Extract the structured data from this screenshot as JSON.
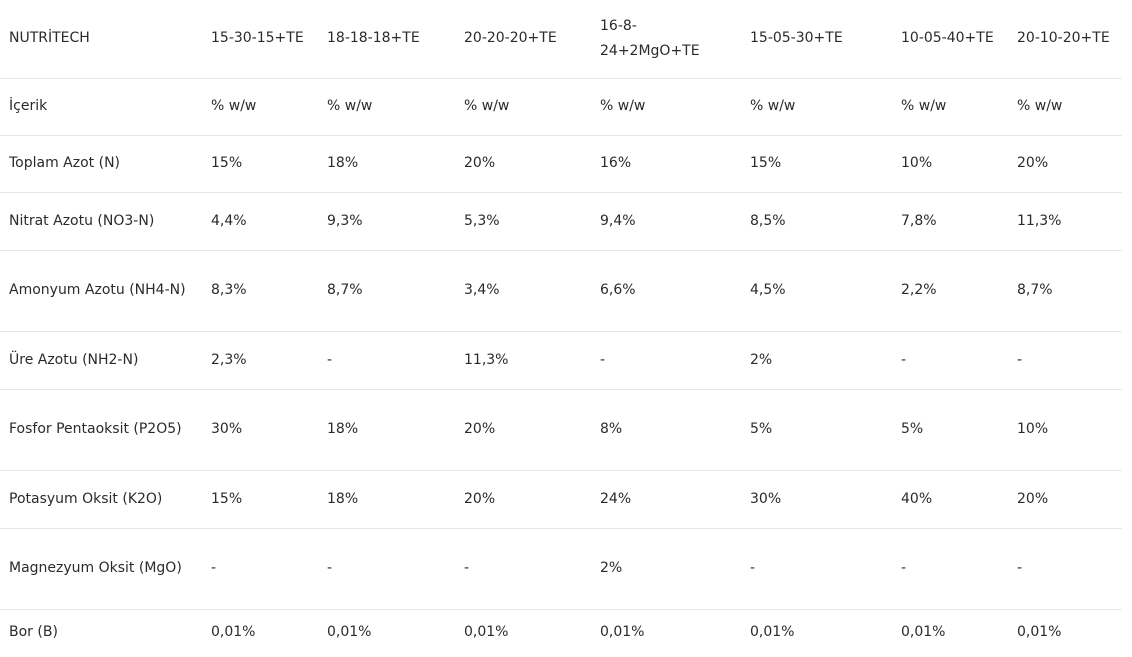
{
  "header": [
    "NUTRİTECH",
    "15-30-15+TE",
    "18-18-18+TE",
    "20-20-20+TE",
    "16-8-24+2MgO+TE",
    "15-05-30+TE",
    "10-05-40+TE",
    "20-10-20+TE"
  ],
  "rows": [
    [
      "İçerik",
      "% w/w",
      "% w/w",
      "% w/w",
      "% w/w",
      "% w/w",
      "% w/w",
      "% w/w"
    ],
    [
      "Toplam Azot (N)",
      "15%",
      "18%",
      "20%",
      "16%",
      "15%",
      "10%",
      "20%"
    ],
    [
      "Nitrat Azotu (NO3-N)",
      "4,4%",
      "9,3%",
      "5,3%",
      "9,4%",
      "8,5%",
      "7,8%",
      "11,3%"
    ],
    [
      "Amonyum Azotu (NH4-N)",
      "8,3%",
      "8,7%",
      "3,4%",
      "6,6%",
      "4,5%",
      "2,2%",
      "8,7%"
    ],
    [
      "Üre Azotu (NH2-N)",
      "2,3%",
      "-",
      "11,3%",
      "-",
      "2%",
      "-",
      "-"
    ],
    [
      "Fosfor Pentaoksit (P2O5)",
      "30%",
      "18%",
      "20%",
      "8%",
      "5%",
      "5%",
      "10%"
    ],
    [
      "Potasyum Oksit (K2O)",
      "15%",
      "18%",
      "20%",
      "24%",
      "30%",
      "40%",
      "20%"
    ],
    [
      "Magnezyum Oksit (MgO)",
      "-",
      "-",
      "-",
      "2%",
      "-",
      "-",
      "-"
    ],
    [
      "Bor (B)",
      "0,01%",
      "0,01%",
      "0,01%",
      "0,01%",
      "0,01%",
      "0,01%",
      "0,01%"
    ]
  ]
}
